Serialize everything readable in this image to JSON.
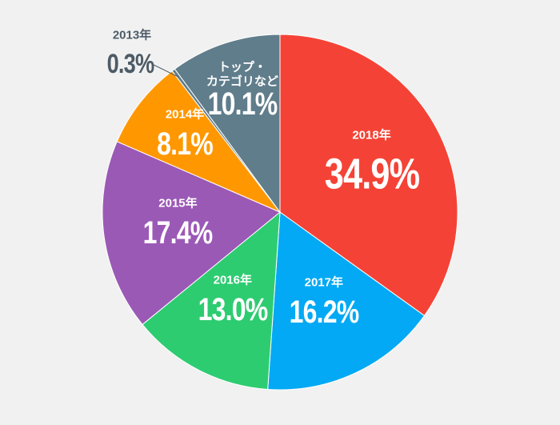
{
  "chart_data": {
    "type": "pie",
    "categories": [
      "2018年",
      "2017年",
      "2016年",
      "2015年",
      "2014年",
      "2013年",
      "トップ・\nカテゴリなど"
    ],
    "values": [
      34.9,
      16.2,
      13.0,
      17.4,
      8.1,
      0.3,
      10.1
    ],
    "value_labels": [
      "34.9%",
      "16.2%",
      "13.0%",
      "17.4%",
      "8.1%",
      "0.3%",
      "10.1%"
    ],
    "colors": [
      "#f44336",
      "#03a9f4",
      "#2ecc71",
      "#9b59b6",
      "#ff9800",
      "#607d8b",
      "#607d8b"
    ]
  }
}
